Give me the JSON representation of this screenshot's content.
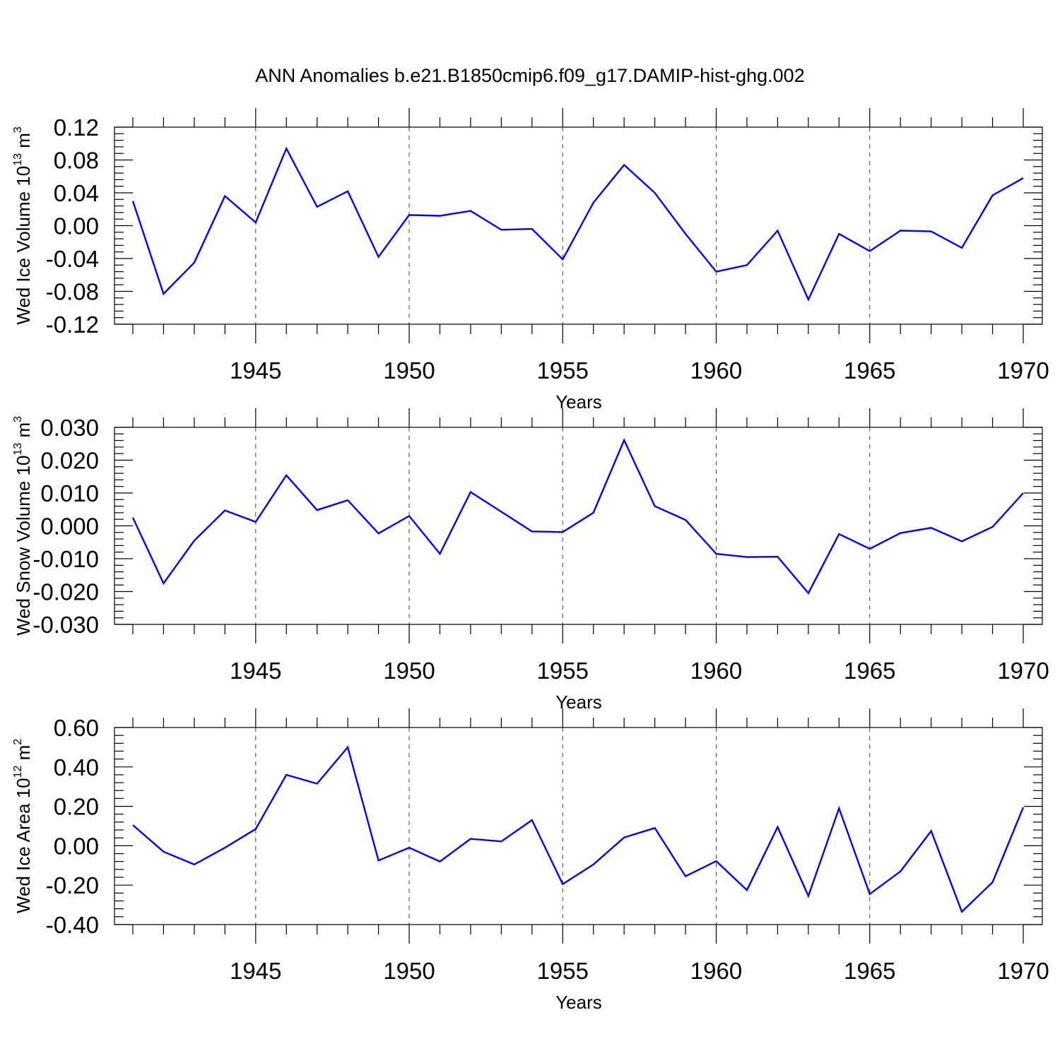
{
  "title": "ANN Anomalies b.e21.B1850cmip6.f09_g17.DAMIP-hist-ghg.002",
  "colors": {
    "line": "#0000ff",
    "axes": "#000000",
    "grid": "#444444"
  },
  "chart_data": [
    {
      "type": "line",
      "ylabel": "Wed Ice Volume 10",
      "ylabel_exp": "13",
      "ylabel_unit": " m",
      "ylabel_unit_exp": "3",
      "xlabel": "Years",
      "xlim": [
        1941,
        1970
      ],
      "ylim": [
        -0.12,
        0.12
      ],
      "yticks": [
        -0.12,
        -0.08,
        -0.04,
        0.0,
        0.04,
        0.08,
        0.12
      ],
      "ytick_labels": [
        "-0.12",
        "-0.08",
        "-0.04",
        "0.00",
        "0.04",
        "0.08",
        "0.12"
      ],
      "xticks": [
        1945,
        1950,
        1955,
        1960,
        1965,
        1970
      ],
      "xtick_labels": [
        "1945",
        "1950",
        "1955",
        "1960",
        "1965",
        "1970"
      ],
      "grid": "vertical dashed at major x ticks",
      "series": [
        {
          "x": [
            1941,
            1942,
            1943,
            1944,
            1945,
            1946,
            1947,
            1948,
            1949,
            1950,
            1951,
            1952,
            1953,
            1954,
            1955,
            1956,
            1957,
            1958,
            1959,
            1960,
            1961,
            1962,
            1963,
            1964,
            1965,
            1966,
            1967,
            1968,
            1969,
            1970
          ],
          "values": [
            0.03,
            -0.083,
            -0.045,
            0.036,
            0.004,
            0.094,
            0.023,
            0.042,
            -0.038,
            0.013,
            0.012,
            0.018,
            -0.005,
            -0.004,
            -0.041,
            0.028,
            0.074,
            0.04,
            -0.01,
            -0.056,
            -0.048,
            -0.006,
            -0.09,
            -0.01,
            -0.031,
            -0.006,
            -0.007,
            -0.027,
            0.037,
            0.058
          ]
        }
      ]
    },
    {
      "type": "line",
      "ylabel": "Wed Snow Volume 10",
      "ylabel_exp": "13",
      "ylabel_unit": " m",
      "ylabel_unit_exp": "3",
      "xlabel": "Years",
      "xlim": [
        1941,
        1970
      ],
      "ylim": [
        -0.03,
        0.03
      ],
      "yticks": [
        -0.03,
        -0.02,
        -0.01,
        0.0,
        0.01,
        0.02,
        0.03
      ],
      "ytick_labels": [
        "-0.030",
        "-0.020",
        "-0.010",
        "0.000",
        "0.010",
        "0.020",
        "0.030"
      ],
      "xticks": [
        1945,
        1950,
        1955,
        1960,
        1965,
        1970
      ],
      "xtick_labels": [
        "1945",
        "1950",
        "1955",
        "1960",
        "1965",
        "1970"
      ],
      "grid": "vertical dashed at major x ticks",
      "series": [
        {
          "x": [
            1941,
            1942,
            1943,
            1944,
            1945,
            1946,
            1947,
            1948,
            1949,
            1950,
            1951,
            1952,
            1953,
            1954,
            1955,
            1956,
            1957,
            1958,
            1959,
            1960,
            1961,
            1962,
            1963,
            1964,
            1965,
            1966,
            1967,
            1968,
            1969,
            1970
          ],
          "values": [
            0.0025,
            -0.0175,
            -0.0045,
            0.0047,
            0.0012,
            0.0154,
            0.0048,
            0.0078,
            -0.0023,
            0.003,
            -0.0085,
            0.0103,
            0.0043,
            -0.0017,
            -0.0019,
            0.004,
            0.0261,
            0.006,
            0.0018,
            -0.0085,
            -0.0095,
            -0.0094,
            -0.0205,
            -0.0025,
            -0.007,
            -0.0022,
            -0.0006,
            -0.0047,
            -0.0003,
            0.01
          ]
        }
      ]
    },
    {
      "type": "line",
      "ylabel": "Wed Ice Area 10",
      "ylabel_exp": "12",
      "ylabel_unit": " m",
      "ylabel_unit_exp": "2",
      "xlabel": "Years",
      "xlim": [
        1941,
        1970
      ],
      "ylim": [
        -0.4,
        0.6
      ],
      "yticks": [
        -0.4,
        -0.2,
        0.0,
        0.2,
        0.4,
        0.6
      ],
      "ytick_labels": [
        "-0.40",
        "-0.20",
        "0.00",
        "0.20",
        "0.40",
        "0.60"
      ],
      "xticks": [
        1945,
        1950,
        1955,
        1960,
        1965,
        1970
      ],
      "xtick_labels": [
        "1945",
        "1950",
        "1955",
        "1960",
        "1965",
        "1970"
      ],
      "grid": "vertical dashed at major x ticks",
      "series": [
        {
          "x": [
            1941,
            1942,
            1943,
            1944,
            1945,
            1946,
            1947,
            1948,
            1949,
            1950,
            1951,
            1952,
            1953,
            1954,
            1955,
            1956,
            1957,
            1958,
            1959,
            1960,
            1961,
            1962,
            1963,
            1964,
            1965,
            1966,
            1967,
            1968,
            1969,
            1970
          ],
          "values": [
            0.105,
            -0.03,
            -0.095,
            -0.01,
            0.085,
            0.36,
            0.315,
            0.5,
            -0.075,
            -0.01,
            -0.08,
            0.035,
            0.022,
            0.13,
            -0.195,
            -0.095,
            0.042,
            0.09,
            -0.155,
            -0.078,
            -0.225,
            0.095,
            -0.255,
            0.19,
            -0.245,
            -0.13,
            0.075,
            -0.335,
            -0.185,
            0.195
          ]
        }
      ]
    }
  ]
}
